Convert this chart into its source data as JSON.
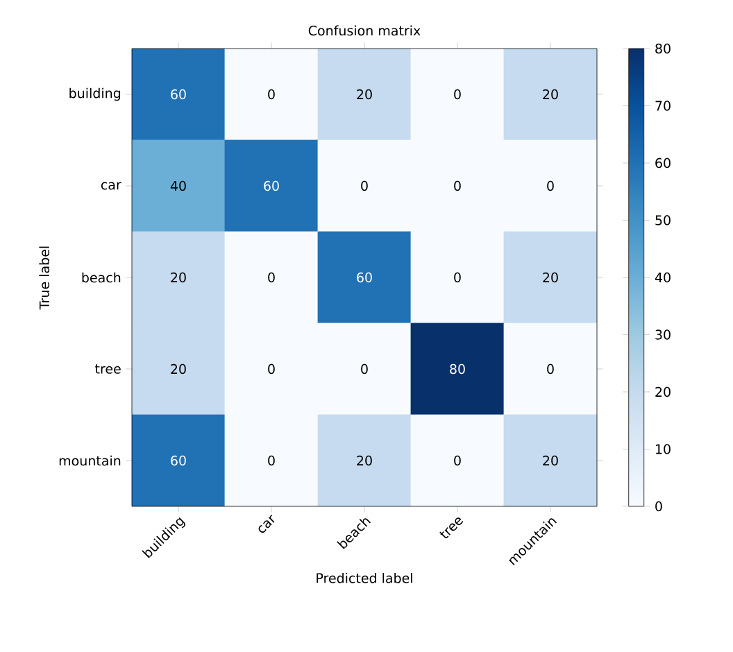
{
  "chart_data": {
    "type": "heatmap",
    "title": "Confusion matrix",
    "xlabel": "Predicted label",
    "ylabel": "True label",
    "categories": [
      "building",
      "car",
      "beach",
      "tree",
      "mountain"
    ],
    "y_categories": [
      "building",
      "car",
      "beach",
      "tree",
      "mountain"
    ],
    "cells": [
      [
        60,
        0,
        20,
        0,
        20
      ],
      [
        40,
        60,
        0,
        0,
        0
      ],
      [
        20,
        0,
        60,
        0,
        20
      ],
      [
        20,
        0,
        0,
        80,
        0
      ],
      [
        60,
        0,
        20,
        0,
        20
      ]
    ],
    "clim": [
      0,
      80
    ],
    "cticks": [
      0,
      10,
      20,
      30,
      40,
      50,
      60,
      70,
      80
    ],
    "data_labels": true
  }
}
